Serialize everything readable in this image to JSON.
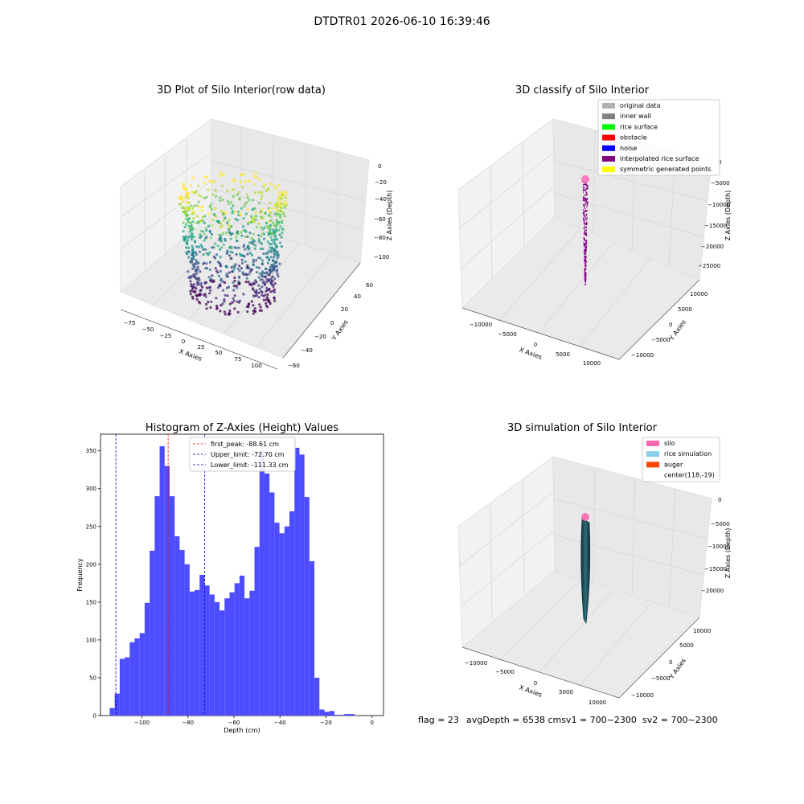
{
  "suptitle": "DTDTR01 2026-06-10 16:39:46",
  "colors": {
    "hist_bar": "#4d4dff",
    "peak_line": "#ff0000",
    "limit_line": "#0000cc"
  },
  "chart_data": [
    {
      "type": "scatter3d",
      "title": "3D Plot of Silo Interior(row data)",
      "xlabel": "X Axies",
      "ylabel": "Y Axies",
      "zlabel": "Z Axies (Depth)",
      "xticks": [
        "−75",
        "−50",
        "−25",
        "0",
        "25",
        "50",
        "75",
        "100"
      ],
      "yticks": [
        "−60",
        "−40",
        "−20",
        "0",
        "20",
        "40",
        "60"
      ],
      "zticks": [
        "0",
        "−20",
        "−40",
        "−60",
        "−80",
        "−100"
      ],
      "xlim": [
        -85,
        110
      ],
      "ylim": [
        -60,
        60
      ],
      "zlim": [
        -120,
        5
      ],
      "colormap": "viridis",
      "point_count": "dense ring of points, colored by depth"
    },
    {
      "type": "scatter3d",
      "title": "3D classify of Silo Interior",
      "zlabel": "Z Axies (Depth)",
      "xlabel": "X Axies",
      "ylabel": "Y Axies",
      "xticks": [
        "−10000",
        "−5000",
        "0",
        "5000",
        "10000"
      ],
      "yticks": [
        "10000",
        "5000",
        "0",
        "−5000",
        "−10000"
      ],
      "zticks": [
        "0",
        "−5000",
        "−10000",
        "−15000",
        "−20000",
        "−25000"
      ],
      "legend_position": "top-right",
      "legend": [
        {
          "label": "original data",
          "color": "#b0b0b0"
        },
        {
          "label": "inner wall",
          "color": "#808080"
        },
        {
          "label": "rice surface",
          "color": "#00ff00"
        },
        {
          "label": "obstacle",
          "color": "#ff0000"
        },
        {
          "label": "noise",
          "color": "#0000ff"
        },
        {
          "label": "interpolated rice surface",
          "color": "#800080"
        },
        {
          "label": "symmetric generated points",
          "color": "#ffff00"
        }
      ]
    },
    {
      "type": "bar",
      "title": "Histogram of Z-Axies (Height) Values",
      "xlabel": "Depth (cm)",
      "ylabel": "Frequency",
      "xlim": [
        -118,
        5
      ],
      "ylim": [
        0,
        372
      ],
      "xticks": [
        -100,
        -80,
        -60,
        -40,
        -20,
        0
      ],
      "xtick_labels": [
        "−100",
        "−80",
        "−60",
        "−40",
        "−20",
        "0"
      ],
      "yticks": [
        0,
        50,
        100,
        150,
        200,
        250,
        300,
        350
      ],
      "yticks_labels": [
        "0",
        "50",
        "100",
        "150",
        "200",
        "250",
        "300",
        "350"
      ],
      "bin_start": -114,
      "bin_width": 2.17,
      "values": [
        10,
        29,
        75,
        77,
        97,
        102,
        109,
        149,
        218,
        290,
        356,
        330,
        290,
        237,
        219,
        200,
        164,
        166,
        186,
        172,
        160,
        150,
        139,
        155,
        163,
        175,
        185,
        155,
        165,
        223,
        350,
        320,
        295,
        255,
        241,
        250,
        270,
        354,
        345,
        289,
        204,
        50,
        8,
        5,
        6,
        1,
        1,
        2,
        2
      ],
      "vlines": [
        {
          "x": -88.61,
          "label": "first_peak: -88.61 cm",
          "style": "peak"
        },
        {
          "x": -72.7,
          "label": "Upper_limit: -72.70 cm",
          "style": "limit"
        },
        {
          "x": -111.33,
          "label": "Lower_limit: -111.33 cm",
          "style": "limit"
        }
      ],
      "legend_position": "top-center"
    },
    {
      "type": "surface3d",
      "title": "3D simulation of Silo Interior",
      "xlabel": "X Axies",
      "ylabel": "Y Axies",
      "zlabel": "Z Axies (Depth)",
      "xticks": [
        "−10000",
        "−5000",
        "0",
        "5000",
        "10000"
      ],
      "yticks": [
        "10000",
        "5000",
        "0",
        "−5000",
        "−10000"
      ],
      "zticks": [
        "0",
        "−5000",
        "−10000",
        "−15000",
        "−20000"
      ],
      "legend_position": "top-right",
      "legend": [
        {
          "label": "silo",
          "color": "#ff69b4"
        },
        {
          "label": "rice simulation",
          "color": "#87ceeb"
        },
        {
          "label": "auger",
          "color": "#ff4500"
        },
        {
          "label": "center(118,-19)",
          "color": ""
        }
      ]
    }
  ],
  "status": {
    "flag": "flag = 23",
    "avg_depth": "avgDepth = 6538 cmsv1 = 700~2300",
    "sv2": "sv2 = 700~2300"
  }
}
